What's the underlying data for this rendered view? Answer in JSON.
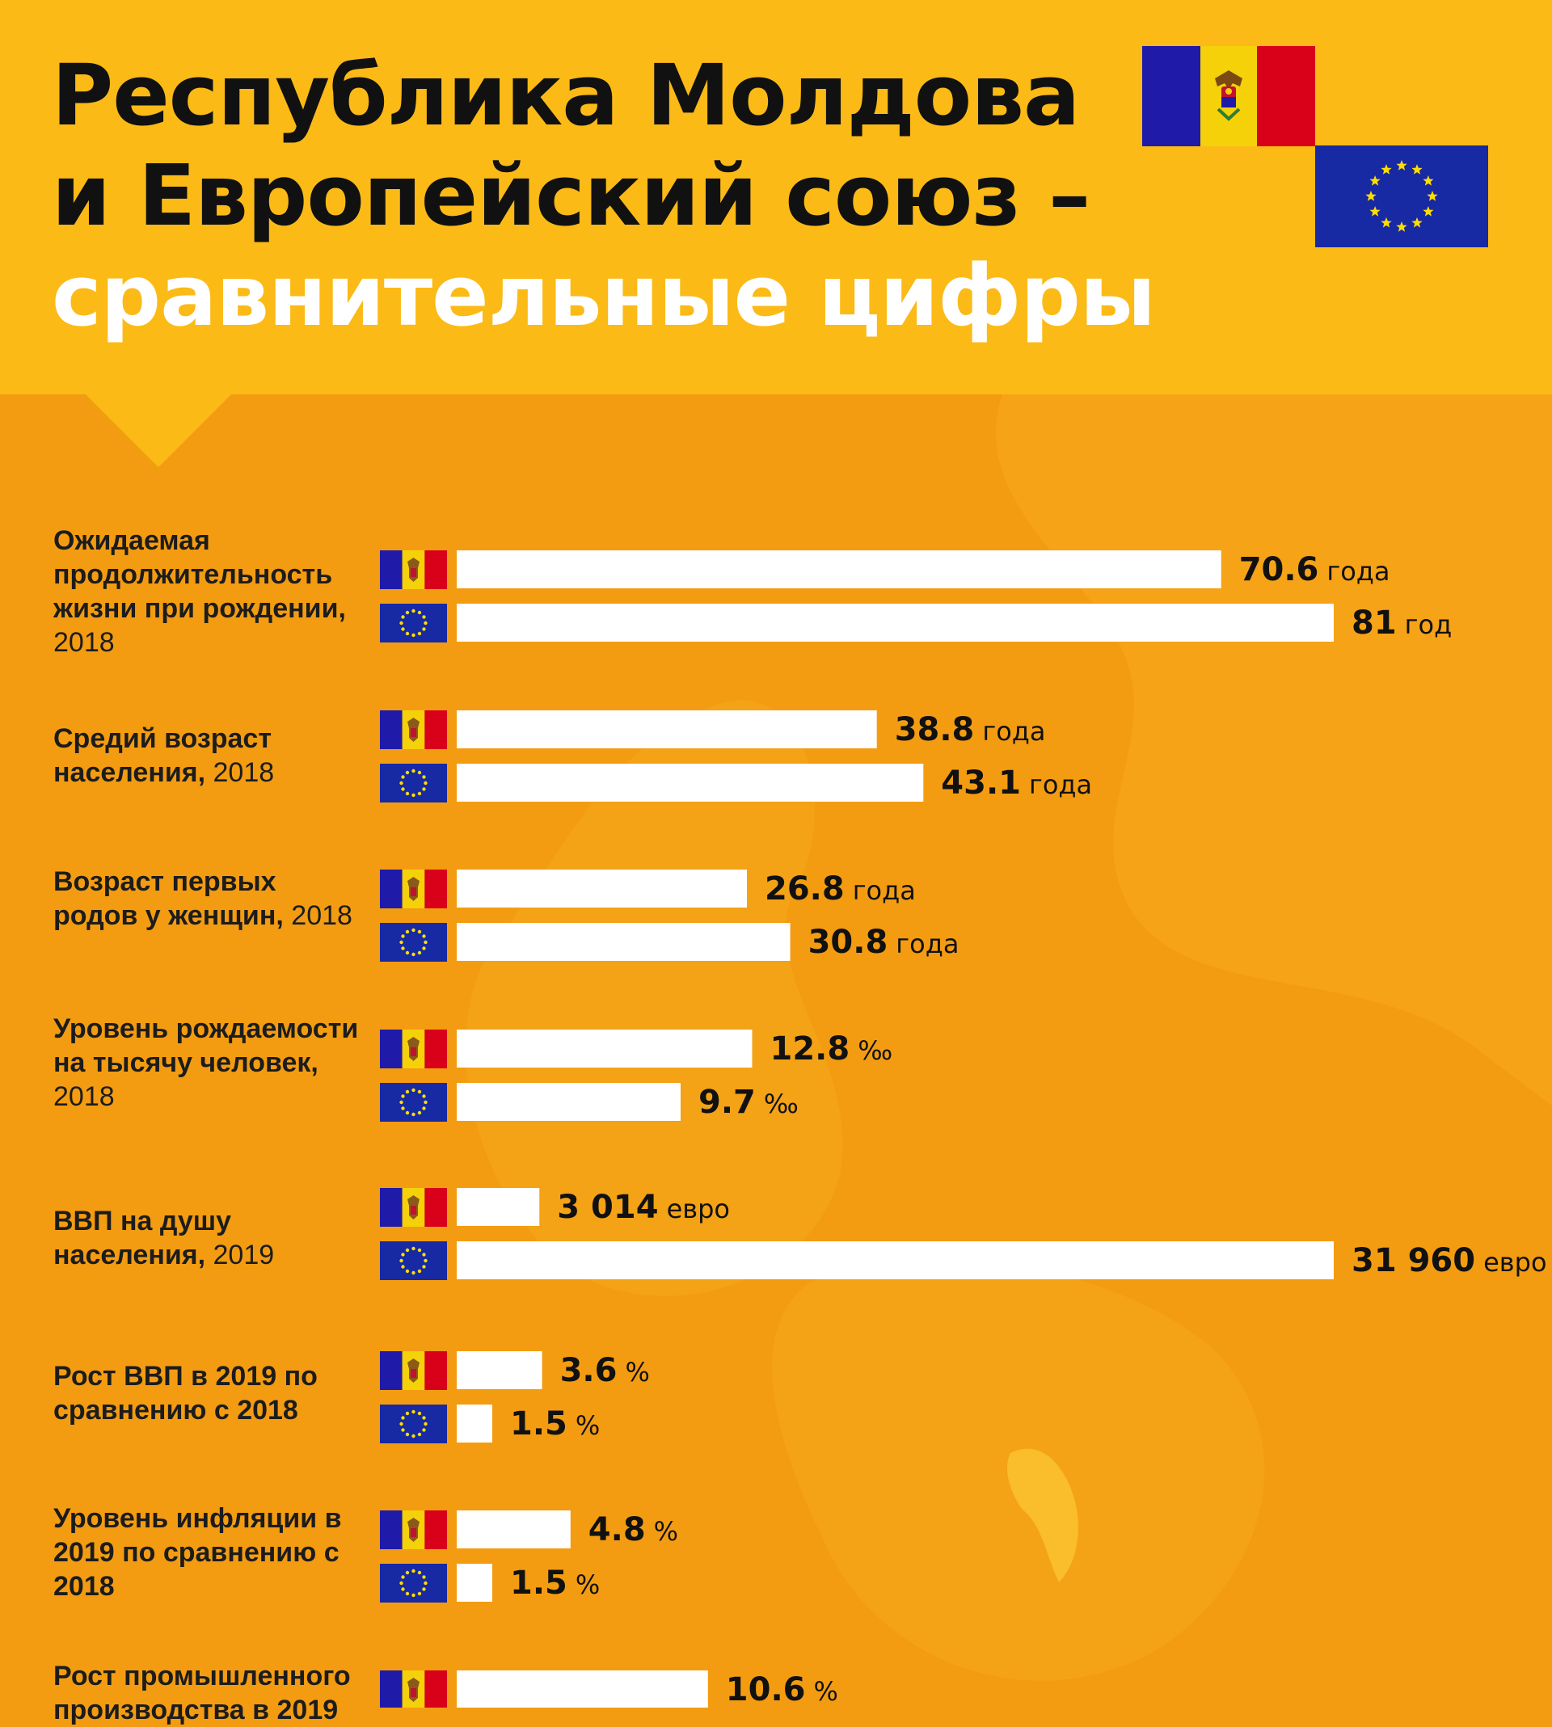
{
  "header": {
    "title_line1": "Республика Молдова",
    "title_line2": "и Европейский союз –",
    "title_line3": "сравнительные цифры"
  },
  "colors": {
    "header_bg": "#fbba16",
    "body_bg": "#f39c12",
    "bar": "#ffffff",
    "flag_md_blue": "#1f1aa8",
    "flag_md_yellow": "#f5d10a",
    "flag_md_red": "#d9001a",
    "flag_eu_blue": "#1729a3",
    "flag_eu_star": "#ffdd00"
  },
  "chart_data": {
    "type": "bar",
    "orientation": "horizontal",
    "series": [
      {
        "flag": "moldova-flag-icon"
      },
      {
        "flag": "eu-flag-icon"
      }
    ],
    "categories": [
      {
        "label": "Ожидаемая продолжительность жизни при рождении,",
        "year": "2018",
        "values": [
          70.6,
          81
        ],
        "labels": [
          "70.6",
          "81"
        ],
        "units": [
          "года",
          "год"
        ],
        "scale_max": 81
      },
      {
        "label": "Средий возраст населения,",
        "year": "2018",
        "values": [
          38.8,
          43.1
        ],
        "labels": [
          "38.8",
          "43.1"
        ],
        "units": [
          "года",
          "года"
        ],
        "scale_max": 81
      },
      {
        "label": "Возраст первых родов у женщин,",
        "year": "2018",
        "values": [
          26.8,
          30.8
        ],
        "labels": [
          "26.8",
          "30.8"
        ],
        "units": [
          "года",
          "года"
        ],
        "scale_max": 81
      },
      {
        "label": "Уровень рождаемости на тысячу человек,",
        "year": "2018",
        "values": [
          12.8,
          9.7
        ],
        "labels": [
          "12.8",
          "9.7"
        ],
        "units": [
          "‰",
          "‰"
        ],
        "scale_max": 38
      },
      {
        "label": "ВВП на душу населения,",
        "year": "2019",
        "values": [
          3014,
          31960
        ],
        "labels": [
          "3 014",
          "31 960"
        ],
        "units": [
          "евро",
          "евро"
        ],
        "scale_max": 31960
      },
      {
        "label": "Рост ВВП в 2019 по сравнению с 2018",
        "year": "",
        "values": [
          3.6,
          1.5
        ],
        "labels": [
          "3.6",
          "1.5"
        ],
        "units": [
          "%",
          "%"
        ],
        "scale_max": 37
      },
      {
        "label": "Уровень инфляции в 2019 по сравнению с 2018",
        "year": "",
        "values": [
          4.8,
          1.5
        ],
        "labels": [
          "4.8",
          "1.5"
        ],
        "units": [
          "%",
          "%"
        ],
        "scale_max": 37
      },
      {
        "label": "Рост промышленного производства в 2019",
        "year": "",
        "values": [
          10.6
        ],
        "labels": [
          "10.6"
        ],
        "units": [
          "%"
        ],
        "scale_max": 37
      }
    ]
  }
}
